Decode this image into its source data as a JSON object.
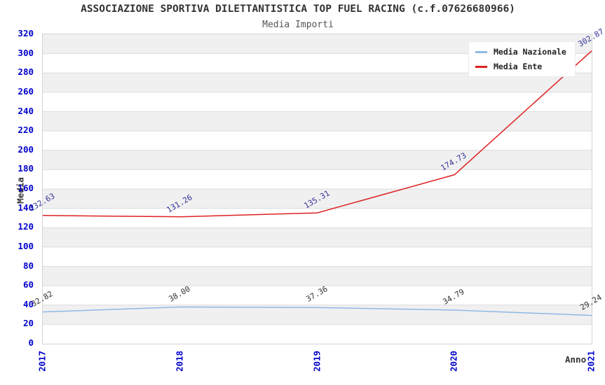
{
  "header": {
    "title": "ASSOCIAZIONE SPORTIVA DILETTANTISTICA TOP FUEL RACING (c.f.07626680966)",
    "subtitle": "Media Importi"
  },
  "axes": {
    "y_label": "Media",
    "x_label": "Anno"
  },
  "legend": [
    {
      "label": "Media Nazionale",
      "color": "#8fb9e6"
    },
    {
      "label": "Media Ente",
      "color": "#dd2222"
    }
  ],
  "chart_data": {
    "type": "line",
    "title": "ASSOCIAZIONE SPORTIVA DILETTANTISTICA TOP FUEL RACING (c.f.07626680966)",
    "subtitle": "Media Importi",
    "xlabel": "Anno",
    "ylabel": "Media",
    "categories": [
      "2017",
      "2018",
      "2019",
      "2020",
      "2021"
    ],
    "series": [
      {
        "name": "Media Nazionale",
        "color": "#8fb9e6",
        "label_color": "#333333",
        "values": [
          32.82,
          38.0,
          37.36,
          34.79,
          29.24
        ]
      },
      {
        "name": "Media Ente",
        "color": "#dd2222",
        "label_color": "#333399",
        "values": [
          132.63,
          131.26,
          135.31,
          174.73,
          302.87
        ]
      }
    ],
    "ylim": [
      0,
      320
    ],
    "ytick_step": 20,
    "yticks": [
      0,
      20,
      40,
      60,
      80,
      100,
      120,
      140,
      160,
      180,
      200,
      220,
      240,
      260,
      280,
      300,
      320
    ],
    "grid": true,
    "grid_color": "#dcdcdc",
    "band_colors": [
      "#f0f0f0",
      "#ffffff"
    ],
    "tick_color": "#0000cc",
    "legend_position": "top-right"
  }
}
